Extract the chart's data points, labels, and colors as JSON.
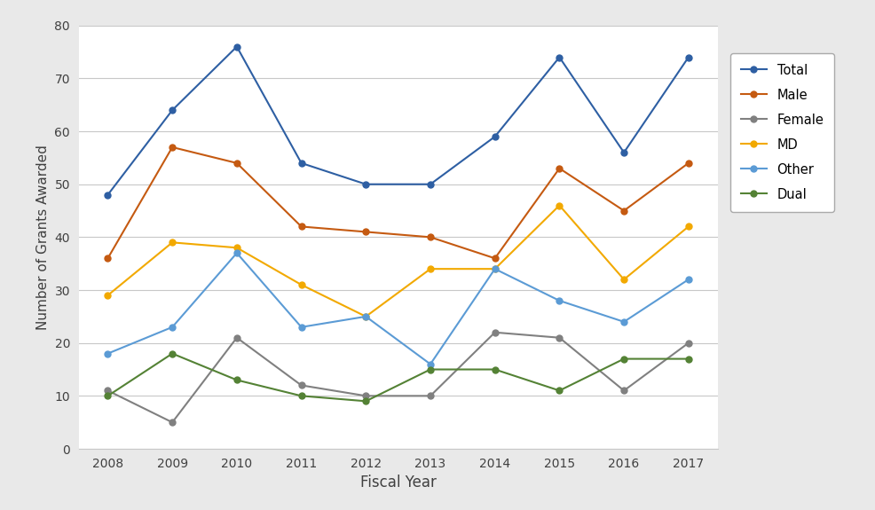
{
  "years": [
    2008,
    2009,
    2010,
    2011,
    2012,
    2013,
    2014,
    2015,
    2016,
    2017
  ],
  "series": {
    "Total": [
      48,
      64,
      76,
      54,
      50,
      50,
      59,
      74,
      56,
      74
    ],
    "Male": [
      36,
      57,
      54,
      42,
      41,
      40,
      36,
      53,
      45,
      54
    ],
    "Female": [
      11,
      5,
      21,
      12,
      10,
      10,
      22,
      21,
      11,
      20
    ],
    "MD": [
      29,
      39,
      38,
      31,
      25,
      34,
      34,
      46,
      32,
      42
    ],
    "Other": [
      18,
      23,
      37,
      23,
      25,
      16,
      34,
      28,
      24,
      32
    ],
    "Dual": [
      10,
      18,
      13,
      10,
      9,
      15,
      15,
      11,
      17,
      17
    ]
  },
  "colors": {
    "Total": "#2E5FA3",
    "Male": "#C55A11",
    "Female": "#808080",
    "MD": "#F2A900",
    "Other": "#5B9BD5",
    "Dual": "#548235"
  },
  "series_order": [
    "Total",
    "Male",
    "Female",
    "MD",
    "Other",
    "Dual"
  ],
  "xlabel": "Fiscal Year",
  "ylabel": "Number of Grants Awarded",
  "ylim": [
    0,
    80
  ],
  "yticks": [
    0,
    10,
    20,
    30,
    40,
    50,
    60,
    70,
    80
  ],
  "fig_background": "#E9E9E9",
  "plot_background": "#FFFFFF"
}
